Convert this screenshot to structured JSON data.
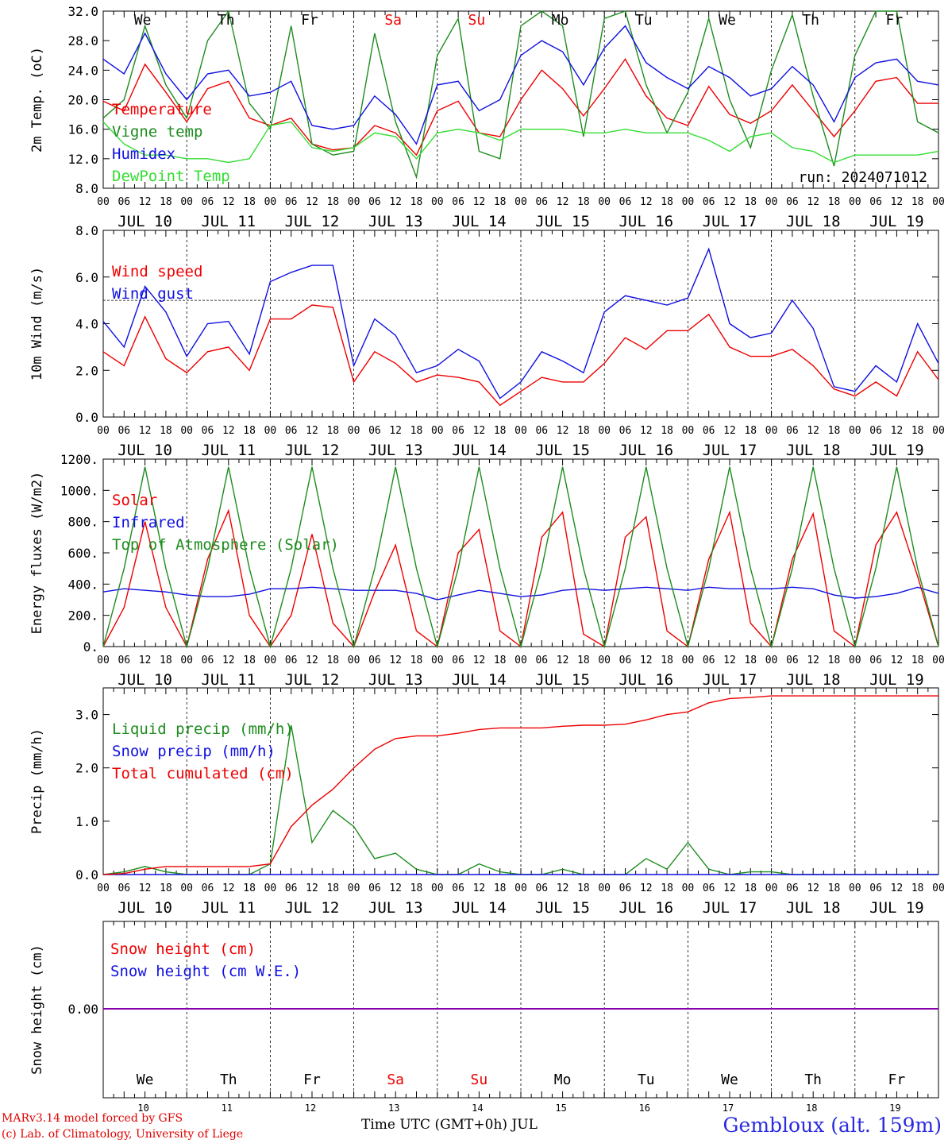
{
  "footer": {
    "model_line": "MARv3.14 model forced by GFS",
    "lab_line": "(c) Lab. of Climatology, University of Liege",
    "time_axis_label": "Time UTC (GMT+0h) JUL",
    "station": "Gembloux (alt. 159m)"
  },
  "days": [
    {
      "dow": "We",
      "date": "JUL 10",
      "day": "10",
      "weekend": false
    },
    {
      "dow": "Th",
      "date": "JUL 11",
      "day": "11",
      "weekend": false
    },
    {
      "dow": "Fr",
      "date": "JUL 12",
      "day": "12",
      "weekend": false
    },
    {
      "dow": "Sa",
      "date": "JUL 13",
      "day": "13",
      "weekend": true
    },
    {
      "dow": "Su",
      "date": "JUL 14",
      "day": "14",
      "weekend": true
    },
    {
      "dow": "Mo",
      "date": "JUL 15",
      "day": "15",
      "weekend": false
    },
    {
      "dow": "Tu",
      "date": "JUL 16",
      "day": "16",
      "weekend": false
    },
    {
      "dow": "We",
      "date": "JUL 17",
      "day": "17",
      "weekend": false
    },
    {
      "dow": "Th",
      "date": "JUL 18",
      "day": "18",
      "weekend": false
    },
    {
      "dow": "Fr",
      "date": "JUL 19",
      "day": "19",
      "weekend": false
    }
  ],
  "hour_ticks": [
    "00",
    "06",
    "12",
    "18"
  ],
  "colors": {
    "red": "#ee0000",
    "green": "#1e8c1e",
    "blue": "#1010e0",
    "lightgreen": "#33dd33",
    "purple": "#8800aa",
    "weekend": "#ee0000"
  },
  "chart_data": [
    {
      "type": "line",
      "id": "temp",
      "ylabel": "2m Temp. (oC)",
      "ylim": [
        8,
        32
      ],
      "yticks": [
        "8.0",
        "12.0",
        "16.0",
        "20.0",
        "24.0",
        "28.0",
        "32.0"
      ],
      "run_label": "run: 2024071012",
      "x_hours": [
        0,
        6,
        12,
        18,
        24,
        30,
        36,
        42,
        48,
        54,
        60,
        66,
        72,
        78,
        84,
        90,
        96,
        102,
        108,
        114,
        120,
        126,
        132,
        138,
        144,
        150,
        156,
        162,
        168,
        174,
        180,
        186,
        192,
        198,
        204,
        210,
        216,
        222,
        228,
        234,
        240
      ],
      "series": [
        {
          "name": "Temperature",
          "color": "red",
          "values": [
            19.8,
            18.5,
            24.8,
            21.0,
            17.0,
            21.5,
            22.5,
            17.5,
            16.5,
            17.5,
            14.0,
            13.2,
            13.5,
            16.5,
            15.5,
            12.5,
            18.5,
            19.8,
            15.5,
            15.0,
            20.0,
            24.0,
            21.5,
            17.8,
            21.5,
            25.5,
            20.5,
            17.5,
            16.5,
            21.8,
            18.0,
            16.8,
            18.5,
            22.0,
            18.5,
            15.0,
            18.5,
            22.5,
            23.0,
            19.5,
            19.5
          ]
        },
        {
          "name": "Vigne temp",
          "color": "green",
          "values": [
            17.5,
            20.0,
            30.0,
            22.0,
            17.5,
            28.0,
            32.0,
            19.5,
            16.0,
            30.0,
            14.0,
            12.5,
            13.0,
            29.0,
            17.0,
            9.5,
            26.0,
            31.0,
            13.0,
            12.0,
            30.0,
            32.0,
            30.0,
            15.0,
            31.0,
            32.0,
            22.0,
            15.5,
            21.0,
            31.0,
            20.0,
            13.5,
            24.0,
            31.5,
            20.5,
            11.0,
            26.0,
            32.0,
            32.0,
            17.0,
            15.5
          ]
        },
        {
          "name": "Humidex",
          "color": "blue",
          "values": [
            25.5,
            23.5,
            29.0,
            23.5,
            20.0,
            23.5,
            24.0,
            20.5,
            21.0,
            22.5,
            16.5,
            16.0,
            16.5,
            20.5,
            18.0,
            14.0,
            22.0,
            22.5,
            18.5,
            20.0,
            26.0,
            28.0,
            26.5,
            22.0,
            27.0,
            30.0,
            25.0,
            23.0,
            21.5,
            24.5,
            23.0,
            20.5,
            21.5,
            24.5,
            22.0,
            17.0,
            23.0,
            25.0,
            25.5,
            22.5,
            22.0
          ]
        },
        {
          "name": "DewPoint Temp",
          "color": "lightgreen",
          "values": [
            17.0,
            14.0,
            12.5,
            12.5,
            12.0,
            12.0,
            11.5,
            12.0,
            16.5,
            17.0,
            13.5,
            13.0,
            13.5,
            15.5,
            15.0,
            12.0,
            15.5,
            16.0,
            15.5,
            14.5,
            16.0,
            16.0,
            16.0,
            15.5,
            15.5,
            16.0,
            15.5,
            15.5,
            15.5,
            14.5,
            13.0,
            15.0,
            15.5,
            13.5,
            13.0,
            11.5,
            12.5,
            12.5,
            12.5,
            12.5,
            13.0
          ]
        }
      ]
    },
    {
      "type": "line",
      "id": "wind",
      "ylabel": "10m Wind (m/s)",
      "ylim": [
        0,
        8
      ],
      "yticks": [
        "0.0",
        "2.0",
        "4.0",
        "6.0",
        "8.0"
      ],
      "reference_line": 5.0,
      "x_hours": [
        0,
        6,
        12,
        18,
        24,
        30,
        36,
        42,
        48,
        54,
        60,
        66,
        72,
        78,
        84,
        90,
        96,
        102,
        108,
        114,
        120,
        126,
        132,
        138,
        144,
        150,
        156,
        162,
        168,
        174,
        180,
        186,
        192,
        198,
        204,
        210,
        216,
        222,
        228,
        234,
        240
      ],
      "series": [
        {
          "name": "Wind speed",
          "color": "red",
          "values": [
            2.8,
            2.2,
            4.3,
            2.5,
            1.9,
            2.8,
            3.0,
            2.0,
            4.2,
            4.2,
            4.8,
            4.7,
            1.5,
            2.8,
            2.3,
            1.5,
            1.8,
            1.7,
            1.5,
            0.5,
            1.1,
            1.7,
            1.5,
            1.5,
            2.3,
            3.4,
            2.9,
            3.7,
            3.7,
            4.4,
            3.0,
            2.6,
            2.6,
            2.9,
            2.2,
            1.2,
            0.9,
            1.5,
            0.9,
            2.8,
            1.6
          ]
        },
        {
          "name": "Wind gust",
          "color": "blue",
          "values": [
            4.1,
            3.0,
            5.6,
            4.5,
            2.6,
            4.0,
            4.1,
            2.7,
            5.8,
            6.2,
            6.5,
            6.5,
            2.2,
            4.2,
            3.5,
            1.9,
            2.2,
            2.9,
            2.4,
            0.8,
            1.5,
            2.8,
            2.4,
            1.9,
            4.5,
            5.2,
            5.0,
            4.8,
            5.1,
            7.2,
            4.0,
            3.4,
            3.6,
            5.0,
            3.8,
            1.3,
            1.1,
            2.2,
            1.5,
            4.0,
            2.3
          ]
        }
      ]
    },
    {
      "type": "line",
      "id": "energy",
      "ylabel": "Energy fluxes (W/m2)",
      "ylim": [
        0,
        1200
      ],
      "yticks": [
        "0.",
        "200.",
        "400.",
        "600.",
        "800.",
        "1000.",
        "1200."
      ],
      "x_hours": [
        0,
        6,
        12,
        18,
        24,
        30,
        36,
        42,
        48,
        54,
        60,
        66,
        72,
        78,
        84,
        90,
        96,
        102,
        108,
        114,
        120,
        126,
        132,
        138,
        144,
        150,
        156,
        162,
        168,
        174,
        180,
        186,
        192,
        198,
        204,
        210,
        216,
        222,
        228,
        234,
        240
      ],
      "series": [
        {
          "name": "Solar",
          "color": "red",
          "values": [
            0,
            250,
            800,
            250,
            0,
            560,
            870,
            200,
            0,
            200,
            720,
            150,
            0,
            350,
            650,
            100,
            0,
            600,
            750,
            100,
            0,
            700,
            860,
            80,
            0,
            700,
            830,
            100,
            0,
            560,
            860,
            150,
            0,
            560,
            850,
            100,
            0,
            650,
            860,
            450,
            0
          ]
        },
        {
          "name": "Infrared",
          "color": "blue",
          "values": [
            350,
            370,
            360,
            350,
            330,
            320,
            320,
            335,
            370,
            370,
            380,
            370,
            360,
            360,
            360,
            340,
            300,
            330,
            360,
            340,
            320,
            330,
            360,
            370,
            360,
            370,
            380,
            370,
            360,
            380,
            370,
            370,
            370,
            380,
            370,
            330,
            310,
            320,
            340,
            380,
            340
          ]
        },
        {
          "name": "Top of Atmosphere (Solar)",
          "color": "green",
          "values": [
            0,
            500,
            1150,
            500,
            0,
            500,
            1150,
            500,
            0,
            500,
            1150,
            500,
            0,
            500,
            1150,
            500,
            0,
            500,
            1150,
            500,
            0,
            500,
            1150,
            500,
            0,
            500,
            1150,
            500,
            0,
            500,
            1150,
            500,
            0,
            500,
            1150,
            500,
            0,
            500,
            1150,
            500,
            0
          ]
        }
      ]
    },
    {
      "type": "line",
      "id": "precip",
      "ylabel": "Precip (mm/h)",
      "ylim": [
        0,
        3.5
      ],
      "yticks": [
        "0.0",
        "1.0",
        "2.0",
        "3.0"
      ],
      "x_hours": [
        0,
        6,
        12,
        18,
        24,
        30,
        36,
        42,
        48,
        54,
        60,
        66,
        72,
        78,
        84,
        90,
        96,
        102,
        108,
        114,
        120,
        126,
        132,
        138,
        144,
        150,
        156,
        162,
        168,
        174,
        180,
        186,
        192,
        198,
        204,
        210,
        216,
        222,
        228,
        234,
        240
      ],
      "series": [
        {
          "name": "Liquid precip (mm/h)",
          "color": "green",
          "values": [
            0,
            0.05,
            0.15,
            0.05,
            0,
            0,
            0,
            0,
            0.2,
            2.8,
            0.6,
            1.2,
            0.9,
            0.3,
            0.4,
            0.1,
            0,
            0,
            0.2,
            0.05,
            0,
            0,
            0.1,
            0,
            0,
            0,
            0.3,
            0.1,
            0.6,
            0.1,
            0,
            0.05,
            0.05,
            0,
            0,
            0,
            0,
            0,
            0,
            0,
            0
          ]
        },
        {
          "name": "Snow precip (mm/h)",
          "color": "blue",
          "values": [
            0,
            0,
            0,
            0,
            0,
            0,
            0,
            0,
            0,
            0,
            0,
            0,
            0,
            0,
            0,
            0,
            0,
            0,
            0,
            0,
            0,
            0,
            0,
            0,
            0,
            0,
            0,
            0,
            0,
            0,
            0,
            0,
            0,
            0,
            0,
            0,
            0,
            0,
            0,
            0,
            0
          ]
        },
        {
          "name": "Total cumulated (cm)",
          "color": "red",
          "values": [
            0,
            0.02,
            0.1,
            0.15,
            0.15,
            0.15,
            0.15,
            0.15,
            0.2,
            0.9,
            1.3,
            1.6,
            2.0,
            2.35,
            2.55,
            2.6,
            2.6,
            2.65,
            2.72,
            2.75,
            2.75,
            2.75,
            2.78,
            2.8,
            2.8,
            2.82,
            2.9,
            3.0,
            3.05,
            3.22,
            3.3,
            3.32,
            3.35,
            3.35,
            3.35,
            3.35,
            3.35,
            3.35,
            3.35,
            3.35,
            3.35
          ]
        }
      ]
    },
    {
      "type": "line",
      "id": "snow",
      "ylabel": "Snow height (cm)",
      "yticks": [
        "0.00"
      ],
      "series": [
        {
          "name": "Snow height (cm)",
          "color": "red"
        },
        {
          "name": "Snow height (cm W.E.)",
          "color": "blue"
        }
      ]
    }
  ]
}
